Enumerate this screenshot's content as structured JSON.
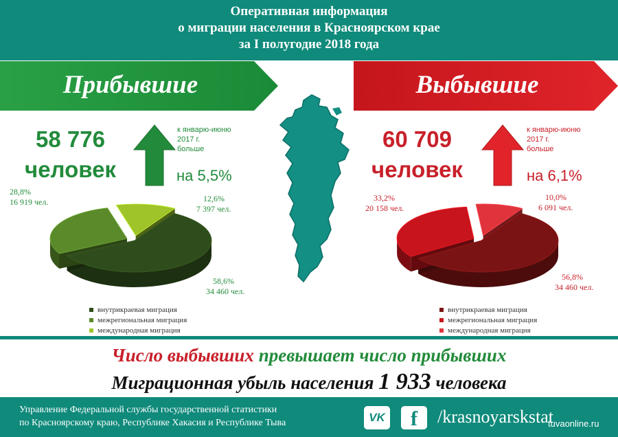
{
  "header": {
    "lines": [
      "Оперативная информация",
      "о миграции населения в Красноярском крае",
      "за I полугодие 2018 года"
    ]
  },
  "colors": {
    "teal": "#0f8a7b",
    "green": "#228b3b",
    "red": "#c8202a"
  },
  "chart_data": [
    {
      "type": "pie",
      "title": "Прибывшие",
      "total_value": "58 776",
      "total_unit": "человек",
      "change_note": "к январю-июню 2017 г. больше",
      "change_note_lines": [
        "к январю-июню",
        "2017 г.",
        "больше"
      ],
      "change_pct": "на 5,5%",
      "categories": [
        "внутрикраевая миграция",
        "межрегиональная миграция",
        "международная миграция"
      ],
      "values": [
        58.6,
        28.8,
        12.6
      ],
      "counts": [
        34460,
        16919,
        7397
      ],
      "pct_labels": [
        "58,6%",
        "28,8%",
        "12,6%"
      ],
      "count_labels": [
        "34 460 чел.",
        "16 919 чел.",
        "7 397 чел."
      ],
      "colors": [
        "#2f4d1c",
        "#5a8a2a",
        "#9ec42a"
      ],
      "legend": "bottom-left"
    },
    {
      "type": "pie",
      "title": "Выбывшие",
      "total_value": "60 709",
      "total_unit": "человек",
      "change_note": "к январю-июню 2017 г. больше",
      "change_note_lines": [
        "к январю-июню",
        "2017 г.",
        "больше"
      ],
      "change_pct": "на 6,1%",
      "categories": [
        "внутрикраевая миграция",
        "межрегиональная миграция",
        "международная миграция"
      ],
      "values": [
        56.8,
        33.2,
        10.0
      ],
      "counts": [
        34460,
        20158,
        6091
      ],
      "pct_labels": [
        "56,8%",
        "33,2%",
        "10,0%"
      ],
      "count_labels": [
        "34 460 чел.",
        "20 158 чел.",
        "6 091 чел."
      ],
      "colors": [
        "#7a1414",
        "#c8141c",
        "#e0343c"
      ],
      "legend": "bottom-right"
    }
  ],
  "messages": {
    "line1_part1": "Число выбывших",
    "line1_part2": "превышает",
    "line1_part3": "число прибывших",
    "line2_text": "Миграционная убыль населения",
    "line2_number": "1 933",
    "line2_unit": "человека"
  },
  "footer": {
    "line1": "Управление Федеральной службы государственной статистики",
    "line2": "по Красноярскому краю, Республике Хакасия и Республике Тыва",
    "handle": "/krasnoyarskstat",
    "vk_label": "VK",
    "fb_label": "f",
    "icons": [
      "vk-icon",
      "facebook-icon"
    ]
  },
  "watermark": "tuvaonline.ru"
}
